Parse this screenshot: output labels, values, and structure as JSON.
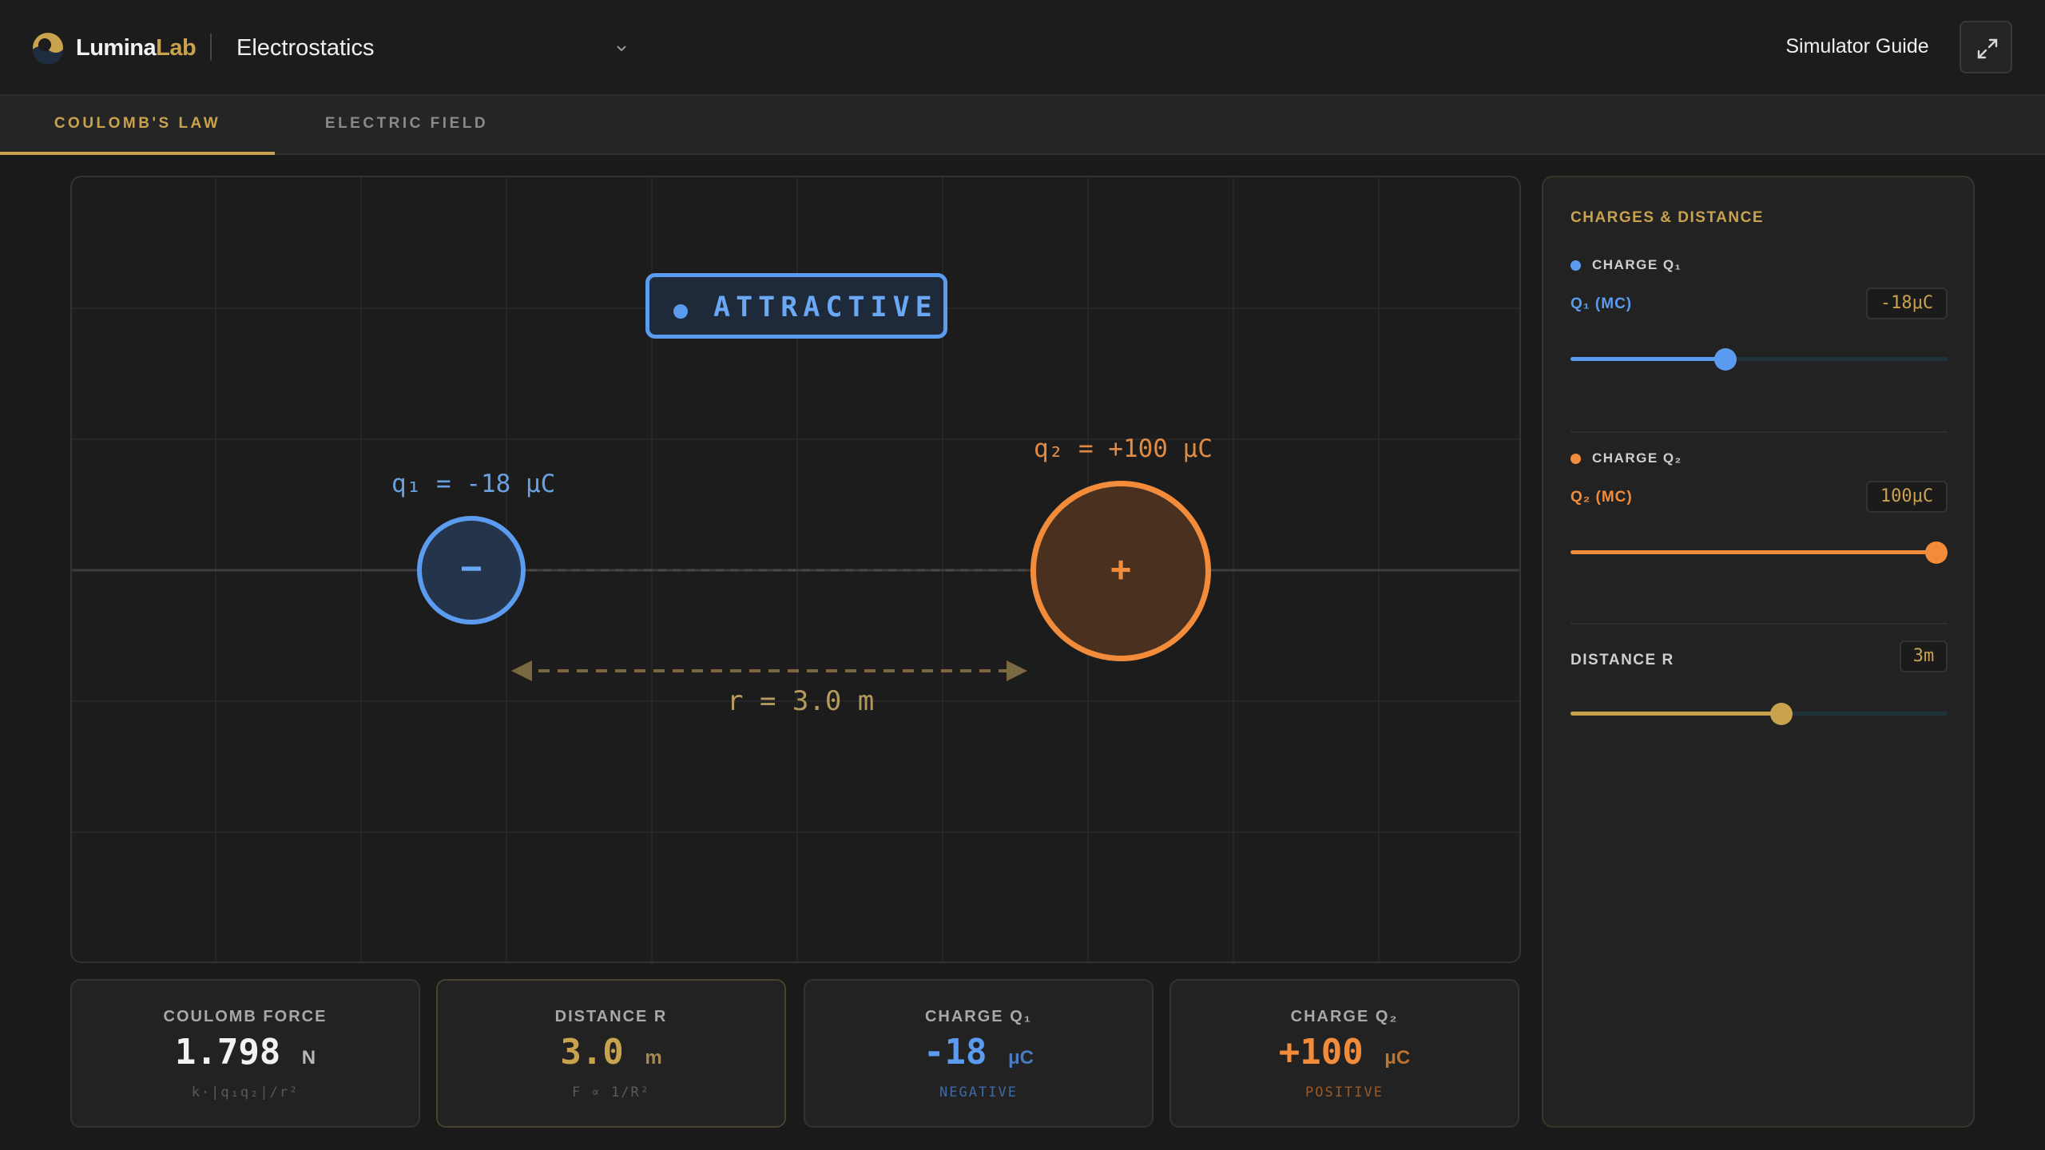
{
  "app": {
    "brand_main": "Lumina",
    "brand_accent": "Lab",
    "module": "Electrostatics",
    "guide_label": "Simulator Guide"
  },
  "tabs": [
    {
      "label": "COULOMB'S LAW",
      "active": true
    },
    {
      "label": "ELECTRIC FIELD",
      "active": false
    }
  ],
  "simulation": {
    "interaction_badge": "ATTRACTIVE",
    "q1_label": "q₁ = -18 μC",
    "q1_sign": "−",
    "q2_label": "q₂ = +100 μC",
    "q2_sign": "+",
    "r_label": "r = 3.0 m"
  },
  "panel": {
    "title": "CHARGES & DISTANCE",
    "q1": {
      "heading": "CHARGE Q₁",
      "field_label": "Q₁ (MC)",
      "value": "-18μC",
      "slider_fraction": 0.41
    },
    "q2": {
      "heading": "CHARGE Q₂",
      "field_label": "Q₂ (MC)",
      "value": "100μC",
      "slider_fraction": 1.0
    },
    "distance": {
      "heading": "DISTANCE R",
      "value": "3m",
      "slider_fraction": 0.56
    }
  },
  "stats": [
    {
      "title": "COULOMB FORCE",
      "value": "1.798",
      "unit": "N",
      "sub": "k·|q₁q₂|/r²"
    },
    {
      "title": "DISTANCE R",
      "value": "3.0",
      "unit": "m",
      "sub": "F ∝ 1/R²"
    },
    {
      "title": "CHARGE Q₁",
      "value": "-18",
      "unit": "μC",
      "sub": "NEGATIVE"
    },
    {
      "title": "CHARGE Q₂",
      "value": "+100",
      "unit": "μC",
      "sub": "POSITIVE"
    }
  ],
  "colors": {
    "accent_gold": "#c9a24e",
    "negative_blue": "#5b9cf0",
    "positive_orange": "#f28c3a"
  },
  "icons": [
    "logo-icon",
    "chevron-down-icon",
    "expand-icon"
  ]
}
